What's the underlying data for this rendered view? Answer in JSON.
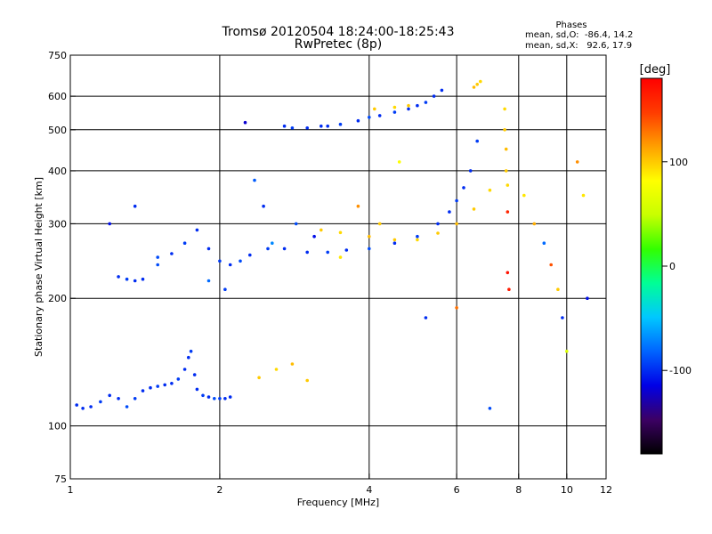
{
  "chart_data": {
    "type": "scatter",
    "title": "Tromsø 20120504 18:24:00-18:25:43",
    "subtitle": "RwPretec (8p)",
    "xlabel": "Frequency [MHz]",
    "ylabel": "Stationary phase Virtual Height [km]",
    "x_scale": "log",
    "y_scale": "log",
    "xlim": [
      1,
      12
    ],
    "ylim": [
      75,
      750
    ],
    "x_ticks": [
      "1",
      "2",
      "4",
      "6",
      "8",
      "10",
      "12"
    ],
    "x_tick_values": [
      1,
      2,
      4,
      6,
      8,
      10,
      12
    ],
    "x_gridlines": [
      2,
      4,
      6,
      8,
      10
    ],
    "y_ticks": [
      "75",
      "100",
      "200",
      "300",
      "400",
      "500",
      "600",
      "750"
    ],
    "y_tick_values": [
      75,
      100,
      200,
      300,
      400,
      500,
      600,
      750
    ],
    "y_gridlines": [
      100,
      200,
      300,
      400,
      500,
      600
    ],
    "grid": true,
    "phases_box": {
      "heading": "Phases",
      "line1": "mean, sd,O:  -86.4, 14.2",
      "line2": "mean, sd,X:   92.6, 17.9"
    },
    "colorbar": {
      "label": "[deg]",
      "range": [
        -180,
        180
      ],
      "ticks": [
        "100",
        "0",
        "-100"
      ],
      "tick_values": [
        100,
        0,
        -100
      ],
      "colors": [
        "#000000",
        "#3c0064",
        "#0000e6",
        "#0064ff",
        "#00c8ff",
        "#00ff96",
        "#32ff00",
        "#c8ff00",
        "#ffff00",
        "#ffa000",
        "#ff3c00",
        "#ff0000"
      ]
    },
    "series": [
      {
        "x": [
          1.03,
          1.06,
          1.1,
          1.15,
          1.2,
          1.25,
          1.3,
          1.35,
          1.4,
          1.45,
          1.5,
          1.55,
          1.6,
          1.65,
          1.7,
          1.73,
          1.75,
          1.78,
          1.8,
          1.85,
          1.9,
          1.95,
          2.0,
          2.05,
          2.1
        ],
        "y": [
          112,
          110,
          111,
          114,
          118,
          116,
          111,
          116,
          121,
          123,
          124,
          125,
          126,
          129,
          136,
          145,
          150,
          132,
          122,
          118,
          117,
          116,
          116,
          116,
          117
        ],
        "phase": [
          -100,
          -100,
          -100,
          -95,
          -100,
          -100,
          -90,
          -95,
          -100,
          -100,
          -95,
          -100,
          -100,
          -95,
          -100,
          -100,
          -95,
          -100,
          -100,
          -95,
          -100,
          -90,
          -95,
          -100,
          -100
        ]
      },
      {
        "x": [
          1.25,
          1.3,
          1.35,
          1.4,
          1.5,
          1.6,
          1.7,
          1.8,
          1.9,
          2.0,
          2.1,
          2.2,
          2.3,
          2.5,
          2.7,
          3.0,
          3.3,
          3.6,
          4.0,
          4.5,
          5.0,
          5.5,
          5.8,
          6.0,
          6.2,
          6.4,
          6.6
        ],
        "y": [
          225,
          222,
          220,
          222,
          240,
          255,
          270,
          290,
          262,
          245,
          240,
          245,
          253,
          262,
          262,
          257,
          257,
          260,
          262,
          270,
          280,
          300,
          320,
          340,
          365,
          400,
          470
        ],
        "phase": [
          -100,
          -95,
          -100,
          -100,
          -90,
          -100,
          -95,
          -100,
          -100,
          -95,
          -100,
          -90,
          -100,
          -95,
          -100,
          -100,
          -95,
          -100,
          -90,
          -100,
          -95,
          -100,
          -100,
          -95,
          -100,
          -100,
          -95
        ]
      },
      {
        "x": [
          2.7,
          2.8,
          3.0,
          3.2,
          3.5,
          3.8,
          4.0,
          4.2,
          4.5,
          4.8,
          5.0,
          5.2,
          5.4,
          5.6
        ],
        "y": [
          510,
          505,
          505,
          510,
          515,
          525,
          535,
          540,
          550,
          560,
          570,
          580,
          600,
          620
        ],
        "phase": [
          -100,
          -95,
          -100,
          -100,
          -95,
          -100,
          -90,
          -100,
          -95,
          -100,
          -100,
          -95,
          -100,
          -100
        ]
      },
      {
        "x": [
          2.4,
          2.6,
          2.8,
          3.0
        ],
        "y": [
          130,
          136,
          140,
          128
        ],
        "phase": [
          100,
          95,
          105,
          100
        ]
      },
      {
        "x": [
          3.2,
          3.5,
          4.0,
          4.5,
          5.0,
          5.5,
          6.0,
          6.5,
          7.0
        ],
        "y": [
          290,
          286,
          280,
          275,
          275,
          285,
          300,
          325,
          360
        ],
        "phase": [
          100,
          95,
          105,
          100,
          95,
          100,
          105,
          100,
          95
        ]
      },
      {
        "x": [
          7.5,
          7.5,
          7.55,
          7.55,
          7.6
        ],
        "y": [
          560,
          500,
          450,
          400,
          370
        ],
        "phase": [
          95,
          100,
          105,
          100,
          95
        ]
      },
      {
        "x": [
          4.1,
          4.5,
          4.8,
          6.5,
          6.6,
          6.7
        ],
        "y": [
          560,
          565,
          570,
          630,
          640,
          650
        ],
        "phase": [
          100,
          95,
          100,
          105,
          100,
          95
        ]
      },
      {
        "x": [
          1.2,
          1.35,
          1.5,
          1.9,
          2.05,
          2.25,
          2.35,
          2.45,
          2.55,
          2.85,
          3.1,
          3.3,
          3.5,
          3.8,
          4.2,
          4.6,
          5.2,
          6.0,
          7.0,
          7.6,
          7.6,
          7.65,
          8.2,
          8.6,
          9.0,
          9.3,
          9.6,
          9.8,
          10.0,
          10.5,
          10.8,
          11.0
        ],
        "y": [
          300,
          330,
          250,
          220,
          210,
          520,
          380,
          330,
          270,
          300,
          280,
          510,
          250,
          330,
          300,
          420,
          180,
          190,
          110,
          320,
          230,
          210,
          350,
          300,
          270,
          240,
          210,
          180,
          150,
          420,
          350,
          200
        ],
        "phase": [
          -110,
          -100,
          -90,
          -80,
          -95,
          -120,
          -85,
          -100,
          -70,
          -90,
          -110,
          -100,
          90,
          120,
          100,
          80,
          -100,
          130,
          -90,
          160,
          170,
          165,
          90,
          110,
          -80,
          140,
          100,
          -100,
          60,
          120,
          90,
          -110
        ]
      }
    ]
  }
}
